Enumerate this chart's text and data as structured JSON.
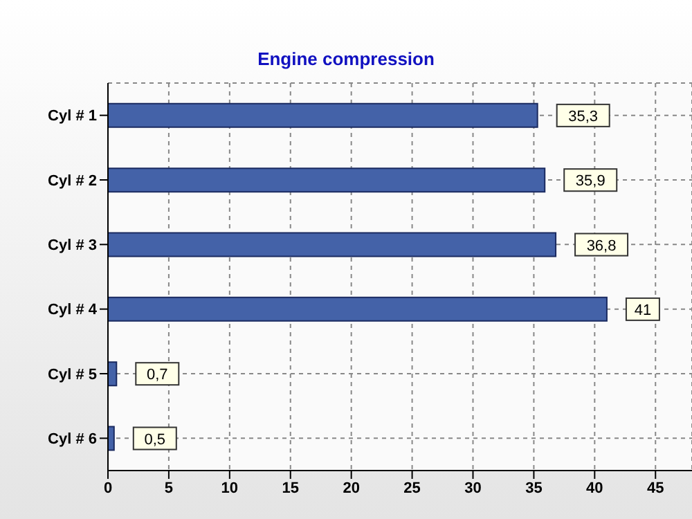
{
  "chart_data": {
    "type": "bar",
    "orientation": "horizontal",
    "title": "Engine compression",
    "categories": [
      "Cyl # 1",
      "Cyl # 2",
      "Cyl # 3",
      "Cyl # 4",
      "Cyl # 5",
      "Cyl # 6"
    ],
    "values": [
      35.3,
      35.9,
      36.8,
      41,
      0.7,
      0.5
    ],
    "value_labels": [
      "35,3",
      "35,9",
      "36,8",
      "41",
      "0,7",
      "0,5"
    ],
    "color": "#4462a8",
    "xlim": [
      0,
      48
    ],
    "xticks": [
      0,
      5,
      10,
      15,
      20,
      25,
      30,
      35,
      40,
      45
    ],
    "grid": true
  }
}
